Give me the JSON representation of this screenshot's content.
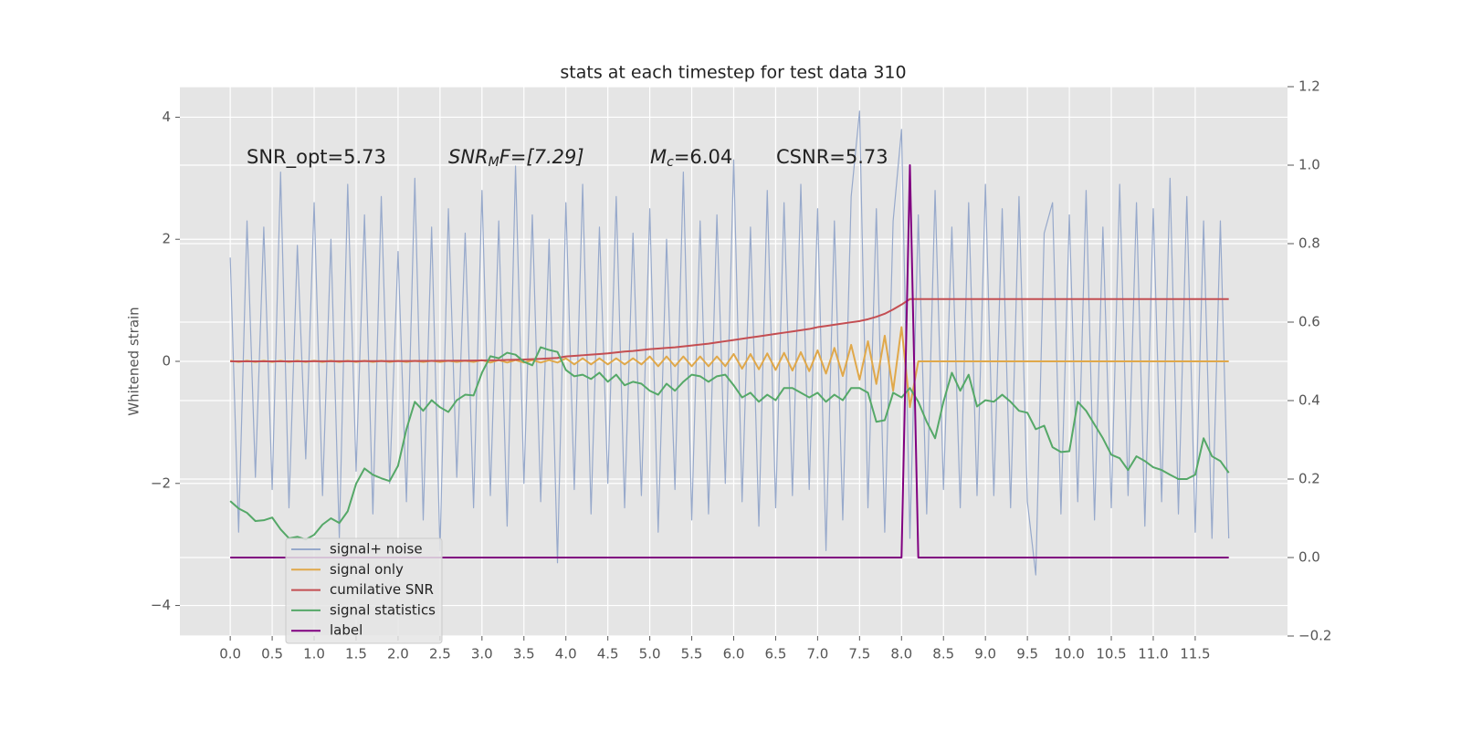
{
  "chart_data": {
    "type": "line",
    "title": "stats at each timestep for test data 310",
    "ylabel": "Whitened strain",
    "annotations": [
      "SNR_opt=5.73",
      {
        "base": "SNR",
        "sub": "M",
        "rest": "F=[7.29]"
      },
      {
        "base": "M",
        "sub": "c",
        "rest": "=6.04"
      },
      "CSNR=5.73"
    ],
    "grid": true,
    "xlim": [
      -0.6,
      12.6
    ],
    "ylim": [
      -4.5,
      4.5
    ],
    "y2lim": [
      -0.2,
      1.2
    ],
    "xticks": [
      {
        "value": 0,
        "label": "0.0"
      },
      0.5,
      {
        "value": 1,
        "label": "1.0"
      },
      1.5,
      {
        "value": 2,
        "label": "2.0"
      },
      2.5,
      {
        "value": 3,
        "label": "3.0"
      },
      3.5,
      {
        "value": 4,
        "label": "4.0"
      },
      4.5,
      {
        "value": 5,
        "label": "5.0"
      },
      5.5,
      {
        "value": 6,
        "label": "6.0"
      },
      6.5,
      {
        "value": 7,
        "label": "7.0"
      },
      7.5,
      {
        "value": 8,
        "label": "8.0"
      },
      8.5,
      {
        "value": 9,
        "label": "9.0"
      },
      9.5,
      {
        "value": 10,
        "label": "10.0"
      },
      10.5,
      {
        "value": 11,
        "label": "11.0"
      },
      11.5
    ],
    "yticks": [
      {
        "value": -4,
        "label": "−4"
      },
      {
        "value": -2,
        "label": "−2"
      },
      0,
      2,
      4
    ],
    "y2ticks": [
      {
        "value": -0.2,
        "label": "−0.2"
      },
      {
        "value": 0,
        "label": "0.0"
      },
      0.2,
      0.4,
      0.6,
      0.8,
      {
        "value": 1,
        "label": "1.0"
      },
      1.2
    ],
    "x": [
      0,
      0.1,
      0.2,
      0.3,
      0.4,
      0.5,
      0.6,
      0.7,
      0.8,
      0.9,
      1,
      1.1,
      1.2,
      1.3,
      1.4,
      1.5,
      1.6,
      1.7,
      1.8,
      1.9,
      2,
      2.1,
      2.2,
      2.3,
      2.4,
      2.5,
      2.6,
      2.7,
      2.8,
      2.9,
      3,
      3.1,
      3.2,
      3.3,
      3.4,
      3.5,
      3.6,
      3.7,
      3.8,
      3.9,
      4,
      4.1,
      4.2,
      4.3,
      4.4,
      4.5,
      4.6,
      4.7,
      4.8,
      4.9,
      5,
      5.1,
      5.2,
      5.3,
      5.4,
      5.5,
      5.6,
      5.7,
      5.8,
      5.9,
      6,
      6.1,
      6.2,
      6.3,
      6.4,
      6.5,
      6.6,
      6.7,
      6.8,
      6.9,
      7,
      7.1,
      7.2,
      7.3,
      7.4,
      7.5,
      7.6,
      7.7,
      7.8,
      7.9,
      8,
      8.1,
      8.2,
      8.3,
      8.4,
      8.5,
      8.6,
      8.7,
      8.8,
      8.9,
      9,
      9.1,
      9.2,
      9.3,
      9.4,
      9.5,
      9.6,
      9.7,
      9.8,
      9.9,
      10,
      10.1,
      10.2,
      10.3,
      10.4,
      10.5,
      10.6,
      10.7,
      10.8,
      10.9,
      11,
      11.1,
      11.2,
      11.3,
      11.4,
      11.5,
      11.6,
      11.7,
      11.8,
      11.9
    ],
    "series": [
      {
        "name": "signal+ noise",
        "color": "#97a9cb",
        "values": [
          1.7,
          -2.8,
          2.3,
          -1.9,
          2.2,
          -2.1,
          3.1,
          -2.4,
          1.9,
          -1.6,
          2.6,
          -2.2,
          2.0,
          -2.9,
          2.9,
          -1.8,
          2.4,
          -2.5,
          2.7,
          -2.0,
          1.8,
          -2.3,
          3.0,
          -2.6,
          2.2,
          -3.1,
          2.5,
          -1.9,
          2.1,
          -2.4,
          2.8,
          -2.2,
          2.3,
          -2.7,
          3.2,
          -2.0,
          2.4,
          -2.3,
          2.0,
          -3.3,
          2.6,
          -2.1,
          2.9,
          -2.5,
          2.2,
          -2.0,
          2.7,
          -2.4,
          2.1,
          -2.2,
          2.5,
          -2.8,
          2.0,
          -2.1,
          3.1,
          -2.6,
          2.3,
          -2.5,
          2.4,
          -2.0,
          3.3,
          -2.3,
          2.2,
          -2.7,
          2.8,
          -2.4,
          2.6,
          -2.2,
          2.9,
          -2.1,
          2.5,
          -3.1,
          2.3,
          -2.6,
          2.7,
          4.1,
          -2.4,
          2.5,
          -2.8,
          2.3,
          3.8,
          -2.9,
          2.4,
          -2.5,
          2.8,
          -2.1,
          2.2,
          -2.4,
          2.6,
          -2.2,
          2.9,
          -2.2,
          2.5,
          -2.4,
          2.7,
          -2.3,
          -3.5,
          2.1,
          2.6,
          -2.5,
          2.4,
          -2.3,
          2.8,
          -2.6,
          2.2,
          -2.4,
          2.9,
          -2.2,
          2.6,
          -2.7,
          2.5,
          -2.3,
          3.0,
          -2.5,
          2.7,
          -2.8,
          2.3,
          -2.9,
          2.3,
          -2.9
        ]
      },
      {
        "name": "signal only",
        "color": "#e0a84a",
        "values": [
          0.01,
          -0.01,
          0.01,
          -0.01,
          0.01,
          -0.01,
          0.01,
          -0.01,
          0.01,
          -0.01,
          0.01,
          -0.01,
          0.01,
          -0.01,
          0.01,
          -0.01,
          0.01,
          -0.01,
          0.01,
          -0.01,
          0.01,
          -0.01,
          0.01,
          -0.01,
          0.01,
          -0.01,
          0.01,
          -0.01,
          0.01,
          -0.01,
          0.02,
          -0.02,
          0.02,
          -0.02,
          0.02,
          -0.02,
          0.02,
          -0.02,
          0.02,
          -0.02,
          0.05,
          -0.05,
          0.05,
          -0.05,
          0.05,
          -0.05,
          0.05,
          -0.05,
          0.05,
          -0.05,
          0.08,
          -0.08,
          0.08,
          -0.08,
          0.08,
          -0.08,
          0.08,
          -0.08,
          0.08,
          -0.08,
          0.12,
          -0.12,
          0.12,
          -0.13,
          0.13,
          -0.14,
          0.14,
          -0.15,
          0.15,
          -0.16,
          0.18,
          -0.2,
          0.22,
          -0.24,
          0.27,
          -0.3,
          0.33,
          -0.37,
          0.42,
          -0.48,
          0.56,
          -0.75,
          0,
          0,
          0,
          0,
          0,
          0,
          0,
          0,
          0,
          0,
          0,
          0,
          0,
          0,
          0,
          0,
          0,
          0,
          0,
          0,
          0,
          0,
          0,
          0,
          0,
          0,
          0,
          0,
          0,
          0,
          0,
          0,
          0,
          0,
          0,
          0,
          0,
          0
        ]
      },
      {
        "name": "cumilative SNR",
        "color": "#c44e52",
        "values": [
          0,
          0,
          0,
          0,
          0,
          0,
          0,
          0,
          0,
          0,
          0.001,
          0.001,
          0.001,
          0.002,
          0.002,
          0.002,
          0.003,
          0.003,
          0.003,
          0.004,
          0.004,
          0.005,
          0.006,
          0.007,
          0.008,
          0.009,
          0.01,
          0.011,
          0.012,
          0.013,
          0.015,
          0.017,
          0.019,
          0.022,
          0.026,
          0.03,
          0.035,
          0.041,
          0.048,
          0.056,
          0.08,
          0.09,
          0.1,
          0.11,
          0.12,
          0.13,
          0.145,
          0.16,
          0.17,
          0.185,
          0.2,
          0.21,
          0.22,
          0.23,
          0.245,
          0.26,
          0.275,
          0.29,
          0.31,
          0.33,
          0.35,
          0.37,
          0.39,
          0.41,
          0.43,
          0.45,
          0.47,
          0.49,
          0.51,
          0.53,
          0.56,
          0.58,
          0.6,
          0.62,
          0.64,
          0.66,
          0.69,
          0.73,
          0.78,
          0.85,
          0.93,
          1.02,
          1.02,
          1.02,
          1.02,
          1.02,
          1.02,
          1.02,
          1.02,
          1.02,
          1.02,
          1.02,
          1.02,
          1.02,
          1.02,
          1.02,
          1.02,
          1.02,
          1.02,
          1.02,
          1.02,
          1.02,
          1.02,
          1.02,
          1.02,
          1.02,
          1.02,
          1.02,
          1.02,
          1.02,
          1.02,
          1.02,
          1.02,
          1.02,
          1.02,
          1.02,
          1.02,
          1.02,
          1.02,
          1.02
        ]
      },
      {
        "name": "signal statistics",
        "color": "#55a868",
        "axis": "y2",
        "values": [
          0.144,
          0.125,
          0.114,
          0.093,
          0.095,
          0.102,
          0.072,
          0.049,
          0.053,
          0.046,
          0.058,
          0.084,
          0.1,
          0.088,
          0.118,
          0.188,
          0.227,
          0.211,
          0.202,
          0.195,
          0.234,
          0.327,
          0.397,
          0.374,
          0.401,
          0.383,
          0.371,
          0.401,
          0.415,
          0.413,
          0.471,
          0.513,
          0.508,
          0.522,
          0.517,
          0.499,
          0.49,
          0.536,
          0.529,
          0.524,
          0.478,
          0.462,
          0.466,
          0.455,
          0.471,
          0.448,
          0.466,
          0.439,
          0.448,
          0.443,
          0.425,
          0.415,
          0.443,
          0.425,
          0.448,
          0.466,
          0.462,
          0.448,
          0.462,
          0.466,
          0.439,
          0.408,
          0.42,
          0.397,
          0.415,
          0.401,
          0.432,
          0.432,
          0.42,
          0.408,
          0.42,
          0.397,
          0.415,
          0.401,
          0.432,
          0.432,
          0.42,
          0.346,
          0.35,
          0.42,
          0.408,
          0.432,
          0.397,
          0.346,
          0.304,
          0.397,
          0.471,
          0.425,
          0.466,
          0.385,
          0.401,
          0.397,
          0.415,
          0.397,
          0.374,
          0.369,
          0.327,
          0.336,
          0.281,
          0.269,
          0.271,
          0.397,
          0.374,
          0.339,
          0.304,
          0.262,
          0.253,
          0.223,
          0.258,
          0.246,
          0.23,
          0.223,
          0.211,
          0.2,
          0.2,
          0.211,
          0.304,
          0.258,
          0.246,
          0.216
        ]
      },
      {
        "name": "label",
        "color": "#800080",
        "axis": "y2",
        "values": [
          0,
          0,
          0,
          0,
          0,
          0,
          0,
          0,
          0,
          0,
          0,
          0,
          0,
          0,
          0,
          0,
          0,
          0,
          0,
          0,
          0,
          0,
          0,
          0,
          0,
          0,
          0,
          0,
          0,
          0,
          0,
          0,
          0,
          0,
          0,
          0,
          0,
          0,
          0,
          0,
          0,
          0,
          0,
          0,
          0,
          0,
          0,
          0,
          0,
          0,
          0,
          0,
          0,
          0,
          0,
          0,
          0,
          0,
          0,
          0,
          0,
          0,
          0,
          0,
          0,
          0,
          0,
          0,
          0,
          0,
          0,
          0,
          0,
          0,
          0,
          0,
          0,
          0,
          0,
          0,
          0,
          1,
          0,
          0,
          0,
          0,
          0,
          0,
          0,
          0,
          0,
          0,
          0,
          0,
          0,
          0,
          0,
          0,
          0,
          0,
          0,
          0,
          0,
          0,
          0,
          0,
          0,
          0,
          0,
          0,
          0,
          0,
          0,
          0,
          0,
          0,
          0,
          0,
          0,
          0
        ]
      }
    ]
  }
}
